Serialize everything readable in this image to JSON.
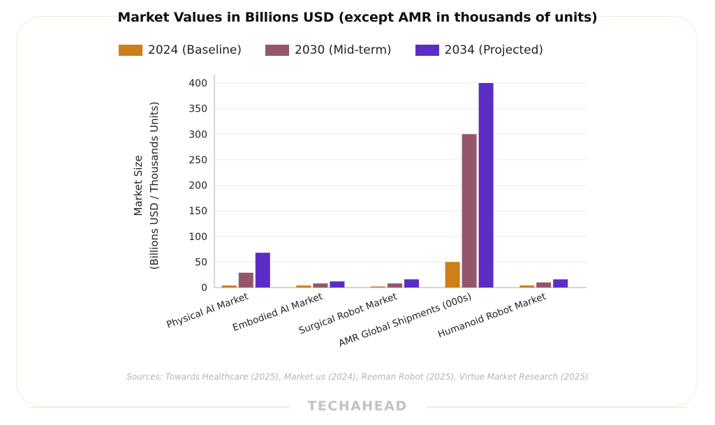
{
  "chart_data": {
    "type": "bar",
    "title": "Market Values in Billions USD (except AMR in thousands of units)",
    "xlabel": "",
    "ylabel_line1": "Market Size",
    "ylabel_line2": "(Billions USD / Thousands Units)",
    "ylim": [
      0,
      400
    ],
    "yticks": [
      0,
      50,
      100,
      150,
      200,
      250,
      300,
      350,
      400
    ],
    "grid": true,
    "legend_position": "top",
    "categories": [
      "Physical AI Market",
      "Embodied AI Market",
      "Surgical Robot Market",
      "AMR Global Shipments (000s)",
      "Humanoid Robot Market"
    ],
    "series": [
      {
        "name": "2024 (Baseline)",
        "color": "#cc7f1a",
        "values": [
          4,
          4,
          2,
          50,
          4
        ]
      },
      {
        "name": "2030 (Mid-term)",
        "color": "#93566b",
        "values": [
          29,
          8,
          8,
          300,
          10
        ]
      },
      {
        "name": "2034 (Projected)",
        "color": "#5b2dc4",
        "values": [
          68,
          12,
          16,
          400,
          16
        ]
      }
    ]
  },
  "footer": {
    "sources": "Sources: Towards Healthcare (2025), Market.us (2024), Reeman Robot (2025), Virtue Market Research (2025)",
    "brand": "TECHAHEAD"
  }
}
